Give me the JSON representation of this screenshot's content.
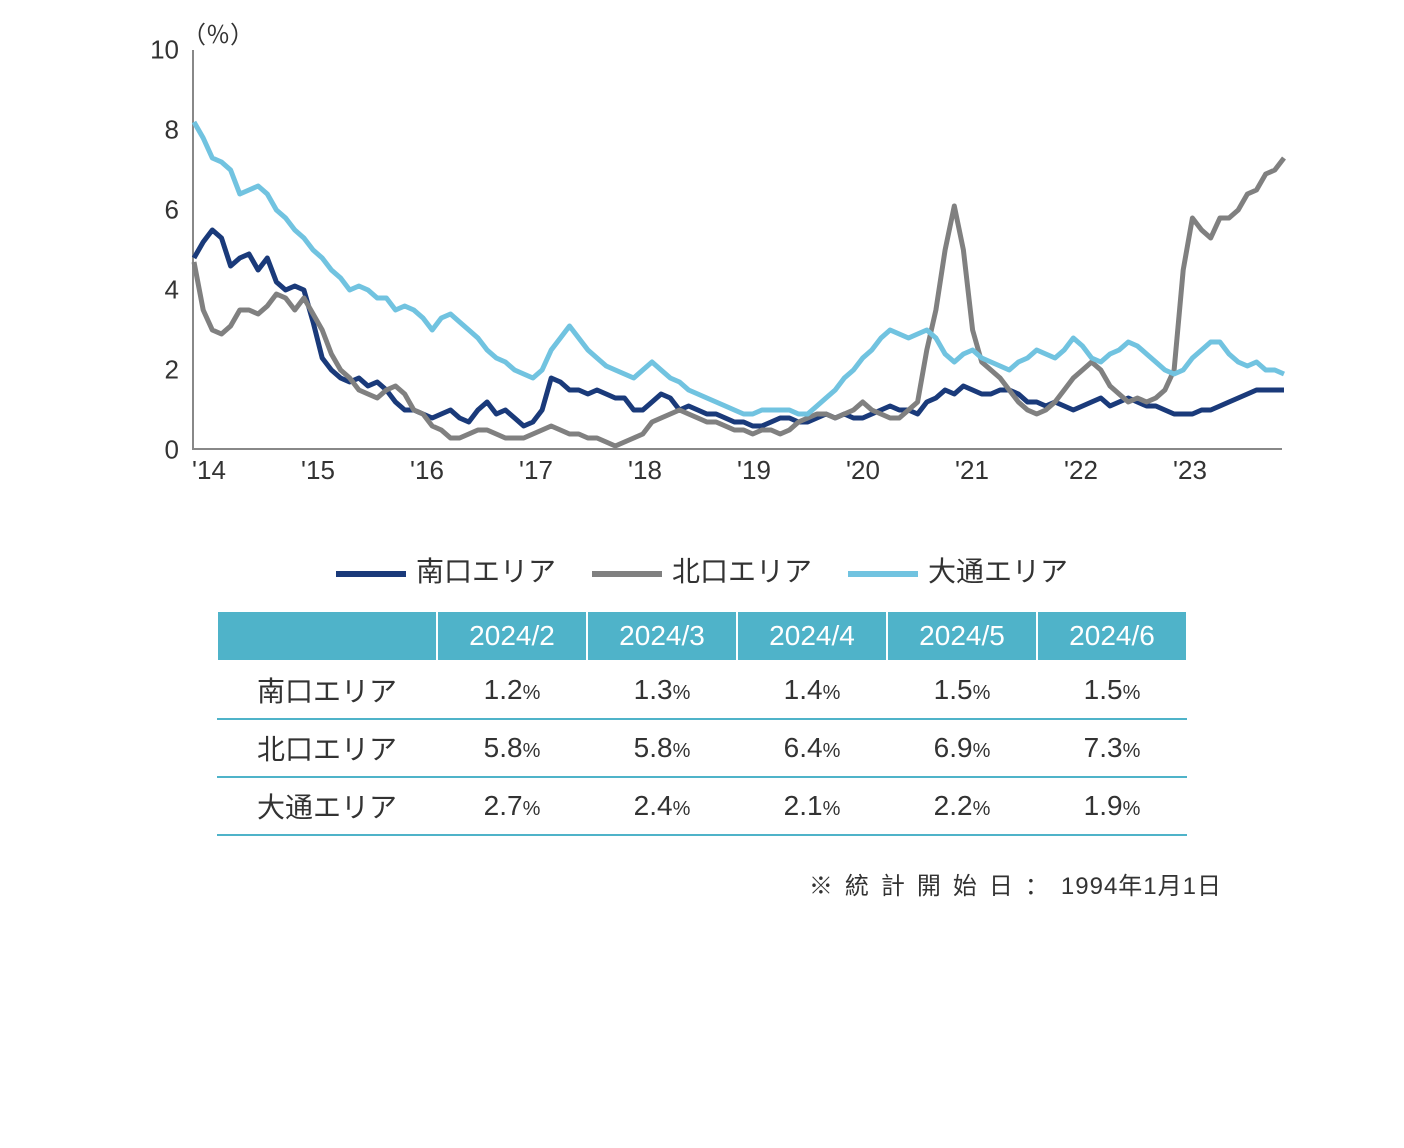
{
  "chart": {
    "type": "line",
    "y_unit_label": "（％）",
    "ylim": [
      0,
      10
    ],
    "yticks": [
      0,
      2,
      4,
      6,
      8,
      10
    ],
    "x_labels": [
      "'14",
      "'15",
      "'16",
      "'17",
      "'18",
      "'19",
      "'20",
      "'21",
      "'22",
      "'23"
    ],
    "x_range_points": 120,
    "background_color": "#ffffff",
    "axis_color": "#888888",
    "line_width": 5,
    "label_fontsize": 26,
    "series": [
      {
        "name": "南口エリア",
        "color": "#1a3a7a",
        "values": [
          4.8,
          5.2,
          5.5,
          5.3,
          4.6,
          4.8,
          4.9,
          4.5,
          4.8,
          4.2,
          4.0,
          4.1,
          4.0,
          3.2,
          2.3,
          2.0,
          1.8,
          1.7,
          1.8,
          1.6,
          1.7,
          1.5,
          1.2,
          1.0,
          1.0,
          0.9,
          0.8,
          0.9,
          1.0,
          0.8,
          0.7,
          1.0,
          1.2,
          0.9,
          1.0,
          0.8,
          0.6,
          0.7,
          1.0,
          1.8,
          1.7,
          1.5,
          1.5,
          1.4,
          1.5,
          1.4,
          1.3,
          1.3,
          1.0,
          1.0,
          1.2,
          1.4,
          1.3,
          1.0,
          1.1,
          1.0,
          0.9,
          0.9,
          0.8,
          0.7,
          0.7,
          0.6,
          0.6,
          0.7,
          0.8,
          0.8,
          0.7,
          0.7,
          0.8,
          0.9,
          0.8,
          0.9,
          0.8,
          0.8,
          0.9,
          1.0,
          1.1,
          1.0,
          1.0,
          0.9,
          1.2,
          1.3,
          1.5,
          1.4,
          1.6,
          1.5,
          1.4,
          1.4,
          1.5,
          1.5,
          1.4,
          1.2,
          1.2,
          1.1,
          1.2,
          1.1,
          1.0,
          1.1,
          1.2,
          1.3,
          1.1,
          1.2,
          1.3,
          1.2,
          1.1,
          1.1,
          1.0,
          0.9,
          0.9,
          0.9,
          1.0,
          1.0,
          1.1,
          1.2,
          1.3,
          1.4,
          1.5,
          1.5,
          1.5,
          1.5
        ]
      },
      {
        "name": "北口エリア",
        "color": "#808080",
        "values": [
          4.7,
          3.5,
          3.0,
          2.9,
          3.1,
          3.5,
          3.5,
          3.4,
          3.6,
          3.9,
          3.8,
          3.5,
          3.8,
          3.4,
          3.0,
          2.4,
          2.0,
          1.8,
          1.5,
          1.4,
          1.3,
          1.5,
          1.6,
          1.4,
          1.0,
          0.9,
          0.6,
          0.5,
          0.3,
          0.3,
          0.4,
          0.5,
          0.5,
          0.4,
          0.3,
          0.3,
          0.3,
          0.4,
          0.5,
          0.6,
          0.5,
          0.4,
          0.4,
          0.3,
          0.3,
          0.2,
          0.1,
          0.2,
          0.3,
          0.4,
          0.7,
          0.8,
          0.9,
          1.0,
          0.9,
          0.8,
          0.7,
          0.7,
          0.6,
          0.5,
          0.5,
          0.4,
          0.5,
          0.5,
          0.4,
          0.5,
          0.7,
          0.8,
          0.9,
          0.9,
          0.8,
          0.9,
          1.0,
          1.2,
          1.0,
          0.9,
          0.8,
          0.8,
          1.0,
          1.2,
          2.5,
          3.5,
          5.0,
          6.1,
          5.0,
          3.0,
          2.2,
          2.0,
          1.8,
          1.5,
          1.2,
          1.0,
          0.9,
          1.0,
          1.2,
          1.5,
          1.8,
          2.0,
          2.2,
          2.0,
          1.6,
          1.4,
          1.2,
          1.3,
          1.2,
          1.3,
          1.5,
          2.0,
          4.5,
          5.8,
          5.5,
          5.3,
          5.8,
          5.8,
          6.0,
          6.4,
          6.5,
          6.9,
          7.0,
          7.3
        ]
      },
      {
        "name": "大通エリア",
        "color": "#71c3e0",
        "values": [
          8.2,
          7.8,
          7.3,
          7.2,
          7.0,
          6.4,
          6.5,
          6.6,
          6.4,
          6.0,
          5.8,
          5.5,
          5.3,
          5.0,
          4.8,
          4.5,
          4.3,
          4.0,
          4.1,
          4.0,
          3.8,
          3.8,
          3.5,
          3.6,
          3.5,
          3.3,
          3.0,
          3.3,
          3.4,
          3.2,
          3.0,
          2.8,
          2.5,
          2.3,
          2.2,
          2.0,
          1.9,
          1.8,
          2.0,
          2.5,
          2.8,
          3.1,
          2.8,
          2.5,
          2.3,
          2.1,
          2.0,
          1.9,
          1.8,
          2.0,
          2.2,
          2.0,
          1.8,
          1.7,
          1.5,
          1.4,
          1.3,
          1.2,
          1.1,
          1.0,
          0.9,
          0.9,
          1.0,
          1.0,
          1.0,
          1.0,
          0.9,
          0.9,
          1.1,
          1.3,
          1.5,
          1.8,
          2.0,
          2.3,
          2.5,
          2.8,
          3.0,
          2.9,
          2.8,
          2.9,
          3.0,
          2.8,
          2.4,
          2.2,
          2.4,
          2.5,
          2.3,
          2.2,
          2.1,
          2.0,
          2.2,
          2.3,
          2.5,
          2.4,
          2.3,
          2.5,
          2.8,
          2.6,
          2.3,
          2.2,
          2.4,
          2.5,
          2.7,
          2.6,
          2.4,
          2.2,
          2.0,
          1.9,
          2.0,
          2.3,
          2.5,
          2.7,
          2.7,
          2.4,
          2.2,
          2.1,
          2.2,
          2.0,
          2.0,
          1.9
        ]
      }
    ]
  },
  "legend": {
    "items": [
      {
        "label": "南口エリア",
        "color": "#1a3a7a"
      },
      {
        "label": "北口エリア",
        "color": "#808080"
      },
      {
        "label": "大通エリア",
        "color": "#71c3e0"
      }
    ]
  },
  "table": {
    "header_bg": "#4fb3c9",
    "header_fg": "#ffffff",
    "border_color": "#4fb3c9",
    "columns": [
      "2024/2",
      "2024/3",
      "2024/4",
      "2024/5",
      "2024/6"
    ],
    "rows": [
      {
        "label": "南口エリア",
        "values": [
          "1.2",
          "1.3",
          "1.4",
          "1.5",
          "1.5"
        ]
      },
      {
        "label": "北口エリア",
        "values": [
          "5.8",
          "5.8",
          "6.4",
          "6.9",
          "7.3"
        ]
      },
      {
        "label": "大通エリア",
        "values": [
          "2.7",
          "2.4",
          "2.1",
          "2.2",
          "1.9"
        ]
      }
    ],
    "pct_suffix": "%"
  },
  "footnote": {
    "prefix": "※統計開始日：",
    "date": "1994年1月1日"
  }
}
